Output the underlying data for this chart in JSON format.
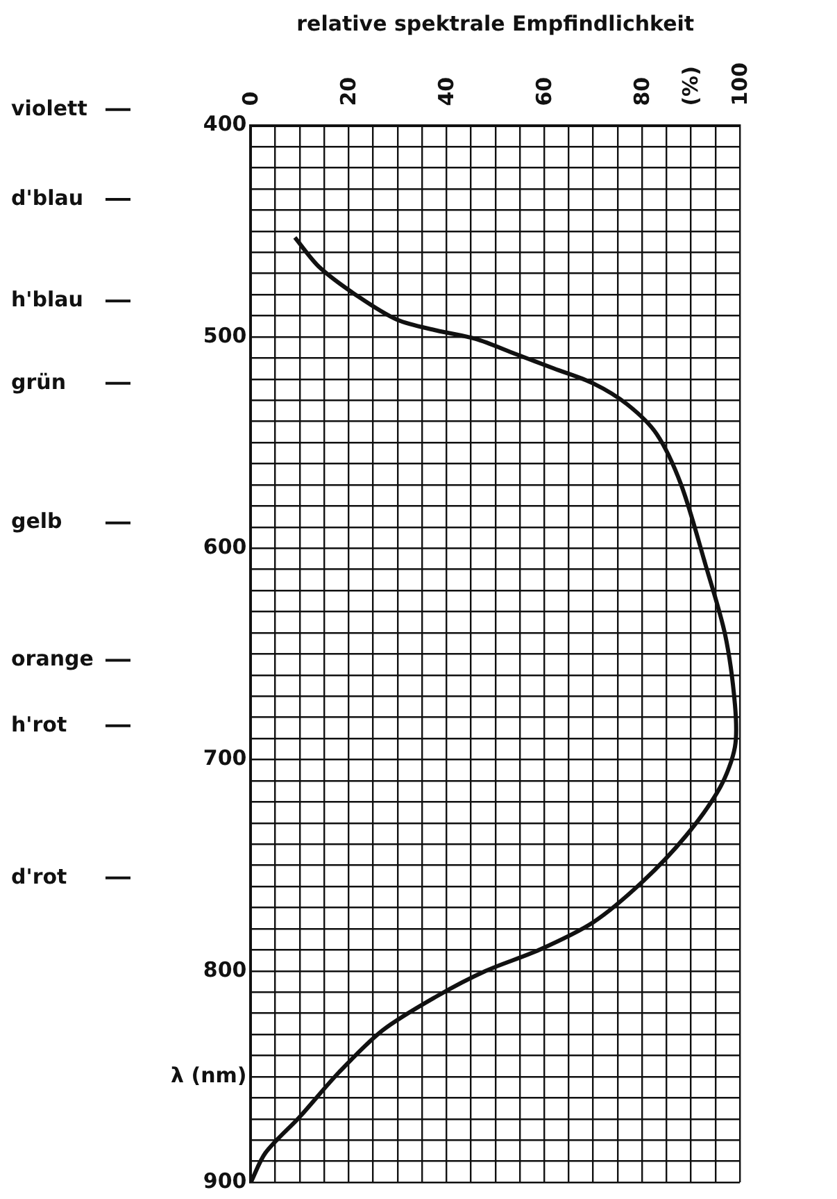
{
  "chart_data": {
    "type": "line",
    "xlabel": "relative spektrale Empfindlichkeit",
    "orientation": "horizontal",
    "x": [
      453,
      467,
      481,
      492,
      497,
      501,
      508,
      515,
      522,
      532,
      546,
      570,
      608,
      641,
      674,
      694,
      713,
      736,
      758,
      777,
      790,
      800,
      812,
      828,
      848,
      869,
      886,
      900
    ],
    "values": [
      9,
      14,
      22,
      30,
      38,
      46,
      54,
      62,
      70,
      77,
      83,
      88,
      93,
      97,
      99,
      99,
      96,
      89,
      80,
      70,
      59,
      48,
      38,
      27,
      18,
      10,
      3,
      0
    ],
    "color": "#111111",
    "xlim": [
      0,
      100
    ],
    "ylim": [
      900,
      400
    ],
    "xticks": [
      0,
      {
        "value": 5,
        "label": null
      },
      {
        "value": 10,
        "label": null
      },
      {
        "value": 15,
        "label": null
      },
      20,
      {
        "value": 25,
        "label": null
      },
      {
        "value": 30,
        "label": null
      },
      {
        "value": 35,
        "label": null
      },
      40,
      {
        "value": 45,
        "label": null
      },
      {
        "value": 50,
        "label": null
      },
      {
        "value": 55,
        "label": null
      },
      60,
      {
        "value": 65,
        "label": null
      },
      {
        "value": 70,
        "label": null
      },
      {
        "value": 75,
        "label": null
      },
      80,
      {
        "value": 85,
        "label": null
      },
      {
        "value": 90,
        "label": "(%)"
      },
      {
        "value": 95,
        "label": null
      },
      100
    ],
    "yticks": [
      400,
      {
        "value": 410,
        "label": null
      },
      {
        "value": 420,
        "label": null
      },
      {
        "value": 430,
        "label": null
      },
      {
        "value": 440,
        "label": null
      },
      {
        "value": 450,
        "label": null
      },
      {
        "value": 460,
        "label": null
      },
      {
        "value": 470,
        "label": null
      },
      {
        "value": 480,
        "label": null
      },
      {
        "value": 490,
        "label": null
      },
      500,
      {
        "value": 510,
        "label": null
      },
      {
        "value": 520,
        "label": null
      },
      {
        "value": 530,
        "label": null
      },
      {
        "value": 540,
        "label": null
      },
      {
        "value": 550,
        "label": null
      },
      {
        "value": 560,
        "label": null
      },
      {
        "value": 570,
        "label": null
      },
      {
        "value": 580,
        "label": null
      },
      {
        "value": 590,
        "label": null
      },
      600,
      {
        "value": 610,
        "label": null
      },
      {
        "value": 620,
        "label": null
      },
      {
        "value": 630,
        "label": null
      },
      {
        "value": 640,
        "label": null
      },
      {
        "value": 650,
        "label": null
      },
      {
        "value": 660,
        "label": null
      },
      {
        "value": 670,
        "label": null
      },
      {
        "value": 680,
        "label": null
      },
      {
        "value": 690,
        "label": null
      },
      700,
      {
        "value": 710,
        "label": null
      },
      {
        "value": 720,
        "label": null
      },
      {
        "value": 730,
        "label": null
      },
      {
        "value": 740,
        "label": null
      },
      {
        "value": 750,
        "label": null
      },
      {
        "value": 760,
        "label": null
      },
      {
        "value": 770,
        "label": null
      },
      {
        "value": 780,
        "label": null
      },
      {
        "value": 790,
        "label": null
      },
      800,
      {
        "value": 810,
        "label": null
      },
      {
        "value": 820,
        "label": null
      },
      {
        "value": 830,
        "label": null
      },
      {
        "value": 840,
        "label": null
      },
      {
        "value": 850,
        "label": "λ (nm)"
      },
      {
        "value": 860,
        "label": null
      },
      {
        "value": 870,
        "label": null
      },
      {
        "value": 880,
        "label": null
      },
      {
        "value": 890,
        "label": null
      },
      900
    ],
    "grid": true,
    "legend": false,
    "marker": "none",
    "line_style": "solid",
    "annotations": [
      "violett",
      "d'blau",
      "h'blau",
      "grün",
      "gelb",
      "orange",
      "h'rot",
      "d'rot"
    ]
  }
}
